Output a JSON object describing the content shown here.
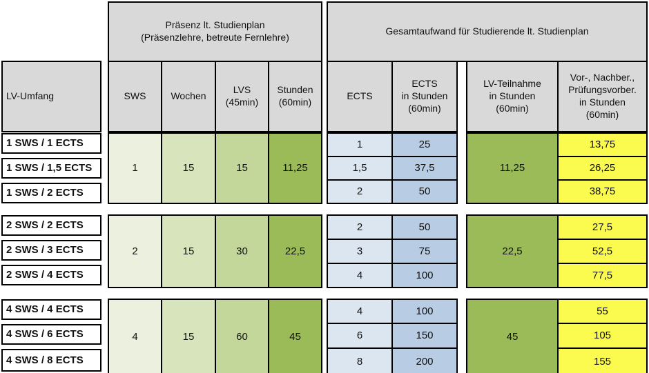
{
  "colors": {
    "header_bg": "#d9d9d9",
    "green_light": "#ebf1de",
    "green_mid1": "#d8e4bc",
    "green_mid2": "#c4d79b",
    "green_dark": "#9bbb59",
    "blue_light": "#dce6f1",
    "blue_dark": "#b8cce4",
    "yellow": "#fbfb4f",
    "border": "#000000"
  },
  "headers": {
    "lv_umfang": "LV-Umfang",
    "praesenz": "Präsenz lt. Studienplan\n(Präsenzlehre, betreute Fernlehre)",
    "gesamtaufwand": "Gesamtaufwand für Studierende lt. Studienplan",
    "sws": "SWS",
    "wochen": "Wochen",
    "lvs": "LVS\n(45min)",
    "stunden": "Stunden\n(60min)",
    "ects": "ECTS",
    "ects_in_stunden": "ECTS\nin Stunden\n(60min)",
    "lv_teilnahme": "LV-Teilnahme\nin Stunden\n(60min)",
    "vor_nachber": "Vor-, Nachber.,\nPrüfungsvorber.\nin Stunden\n(60min)"
  },
  "groups": [
    {
      "labels": [
        "1 SWS / 1 ECTS",
        "1 SWS / 1,5 ECTS",
        "1 SWS / 2 ECTS"
      ],
      "sws": "1",
      "wochen": "15",
      "lvs": "15",
      "stunden": "11,25",
      "ects": [
        "1",
        "1,5",
        "2"
      ],
      "ects_in_stunden": [
        "25",
        "37,5",
        "50"
      ],
      "lv_teilnahme": "11,25",
      "vor_nachber": [
        "13,75",
        "26,25",
        "38,75"
      ]
    },
    {
      "labels": [
        "2 SWS / 2 ECTS",
        "2 SWS / 3 ECTS",
        "2 SWS / 4 ECTS"
      ],
      "sws": "2",
      "wochen": "15",
      "lvs": "30",
      "stunden": "22,5",
      "ects": [
        "2",
        "3",
        "4"
      ],
      "ects_in_stunden": [
        "50",
        "75",
        "100"
      ],
      "lv_teilnahme": "22,5",
      "vor_nachber": [
        "27,5",
        "52,5",
        "77,5"
      ]
    },
    {
      "labels": [
        "4 SWS / 4 ECTS",
        "4 SWS / 6 ECTS",
        "4 SWS / 8 ECTS"
      ],
      "sws": "4",
      "wochen": "15",
      "lvs": "60",
      "stunden": "45",
      "ects": [
        "4",
        "6",
        "8"
      ],
      "ects_in_stunden": [
        "100",
        "150",
        "200"
      ],
      "lv_teilnahme": "45",
      "vor_nachber": [
        "55",
        "105",
        "155"
      ]
    }
  ]
}
